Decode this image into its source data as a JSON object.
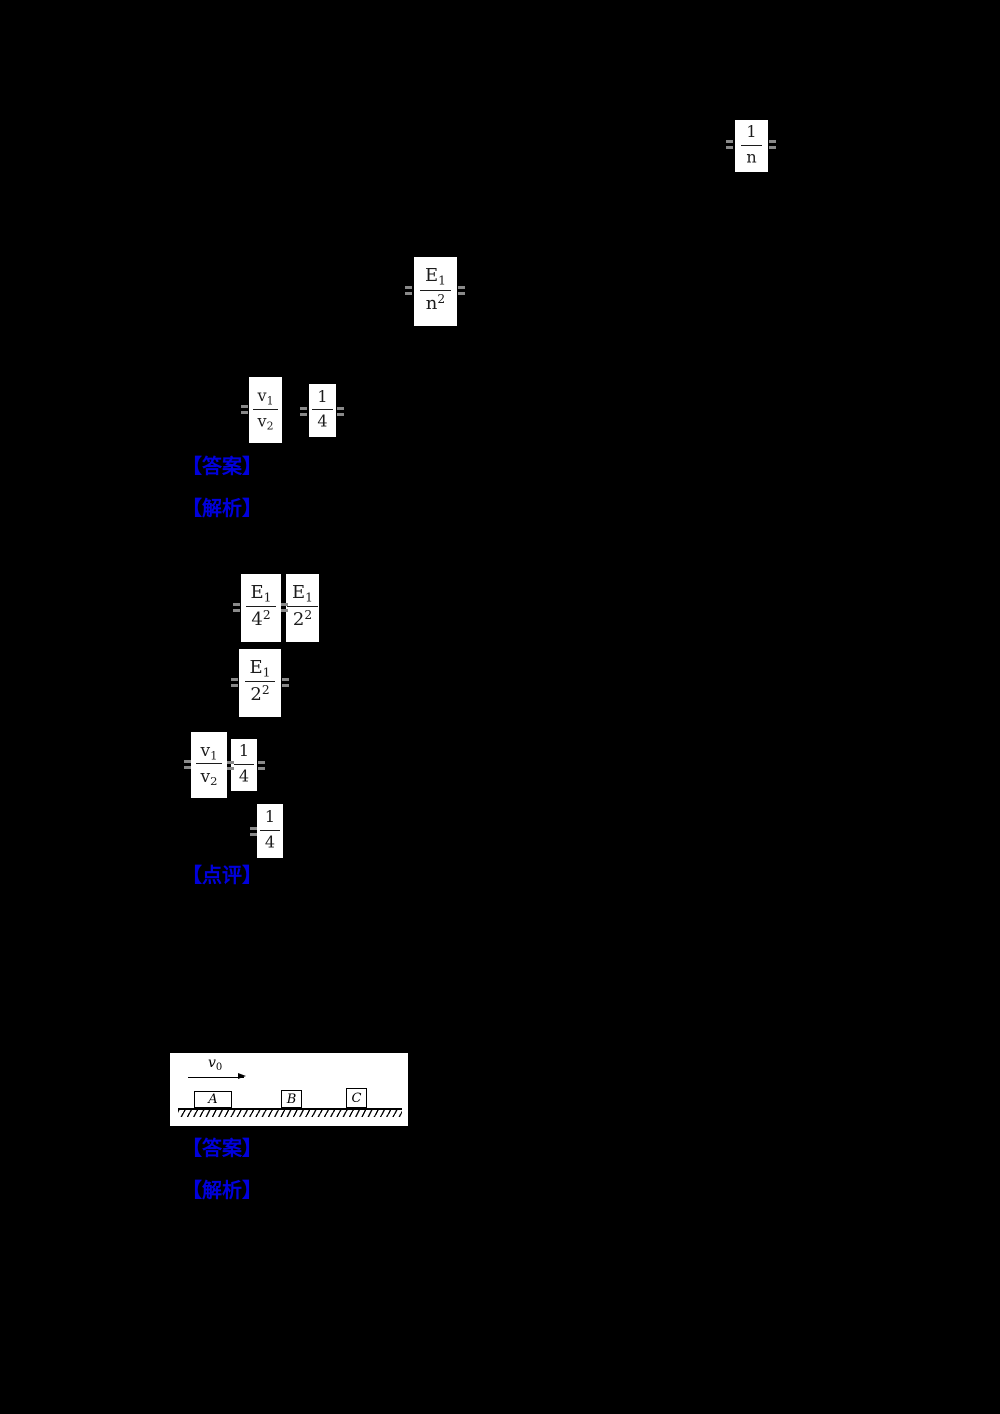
{
  "colors": {
    "page_background": "#000000",
    "label_blue": "#0000dd",
    "formula_box_background": "#ffffff",
    "formula_ink": "#1c1c1c",
    "equals_fragment_gray": "#8a8a8a"
  },
  "labels": {
    "answer_1": "【答案】",
    "analysis_1": "【解析】",
    "comment_1": "【点评】",
    "answer_2": "【答案】",
    "analysis_2": "【解析】"
  },
  "formulas": [
    {
      "num_base": "1",
      "num_sub": "",
      "den_base": "n",
      "den_sub": "",
      "den_sup": ""
    },
    {
      "num_base": "E",
      "num_sub": "1",
      "den_base": "n",
      "den_sub": "",
      "den_sup": "2"
    },
    {
      "num_base": "v",
      "num_sub": "1",
      "den_base": "v",
      "den_sub": "2",
      "den_sup": ""
    },
    {
      "num_base": "1",
      "num_sub": "",
      "den_base": "4",
      "den_sub": "",
      "den_sup": ""
    },
    {
      "num_base": "E",
      "num_sub": "1",
      "den_base": "4",
      "den_sub": "",
      "den_sup": "2"
    },
    {
      "num_base": "E",
      "num_sub": "1",
      "den_base": "2",
      "den_sub": "",
      "den_sup": "2"
    },
    {
      "num_base": "E",
      "num_sub": "1",
      "den_base": "2",
      "den_sub": "",
      "den_sup": "2"
    },
    {
      "num_base": "v",
      "num_sub": "1",
      "den_base": "v",
      "den_sub": "2",
      "den_sup": ""
    },
    {
      "num_base": "1",
      "num_sub": "",
      "den_base": "4",
      "den_sub": "",
      "den_sup": ""
    },
    {
      "num_base": "1",
      "num_sub": "",
      "den_base": "4",
      "den_sub": "",
      "den_sup": ""
    }
  ],
  "diagram": {
    "velocity_base": "v",
    "velocity_sub": "0",
    "block_a": "A",
    "block_b": "B",
    "block_c": "C"
  }
}
